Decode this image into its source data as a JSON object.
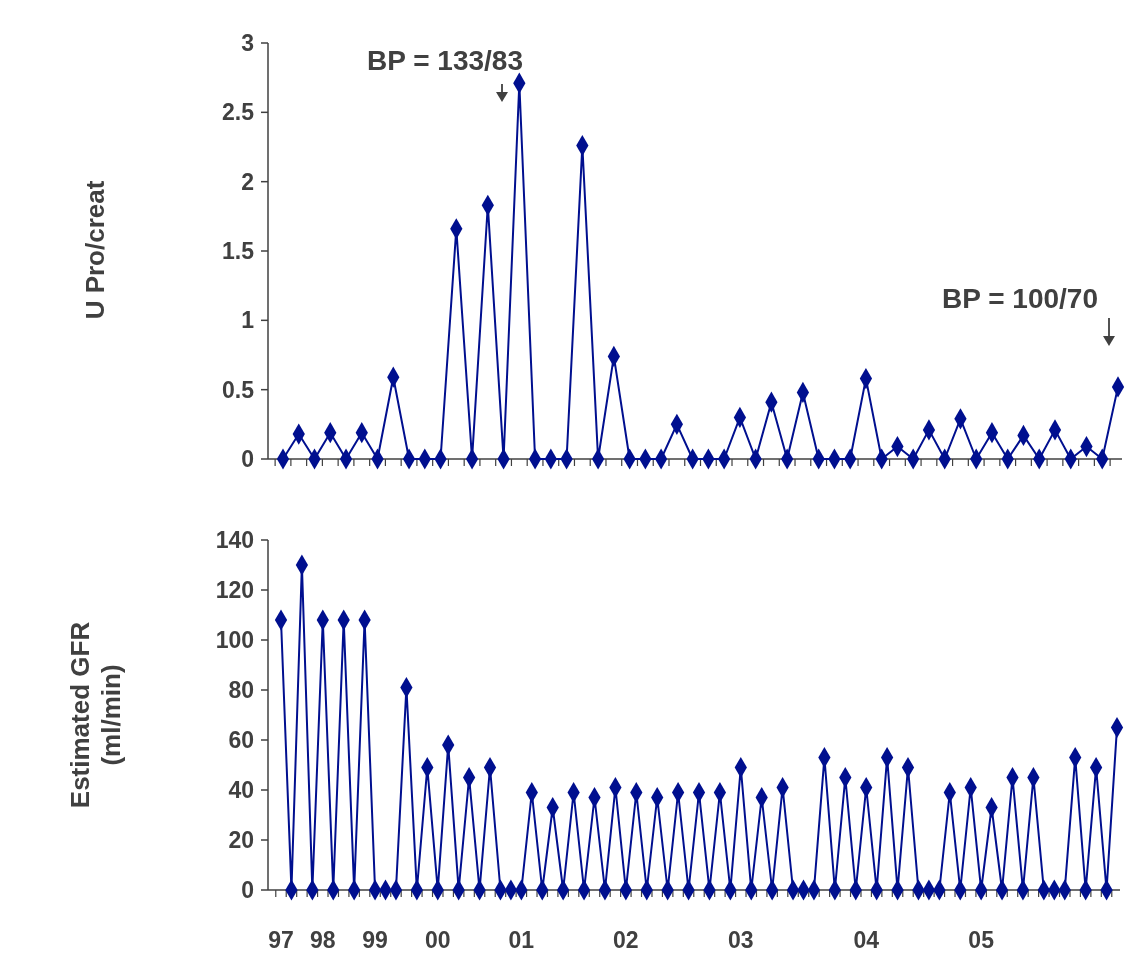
{
  "chart_data": [
    {
      "type": "line",
      "ylabel": "U Pro/creat",
      "marker": "diamond",
      "color": "#000f8f",
      "tick_labels": "y",
      "ylim": [
        0,
        3
      ],
      "yticks": [
        0,
        0.5,
        1,
        1.5,
        2,
        2.5,
        3
      ],
      "categories": [
        null,
        null,
        null,
        null,
        null,
        null,
        null,
        null,
        null,
        null,
        null,
        null,
        null,
        null,
        null,
        null,
        null,
        null,
        null,
        null,
        null,
        null,
        null,
        null,
        null,
        null,
        null,
        null,
        null,
        null,
        null,
        null,
        null,
        null,
        null,
        null,
        null,
        null,
        null,
        null,
        null,
        null,
        null,
        null,
        null,
        null,
        null,
        null,
        null,
        null,
        null,
        null,
        null,
        null
      ],
      "values": [
        0,
        0.18,
        0,
        0.19,
        0,
        0.19,
        0,
        0.59,
        0,
        0,
        0,
        1.66,
        0,
        1.83,
        0,
        2.71,
        0,
        0,
        0,
        2.26,
        0,
        0.74,
        0,
        0,
        0,
        0.25,
        0,
        0,
        0,
        0.3,
        0,
        0.41,
        0,
        0.48,
        0,
        0,
        0,
        0.58,
        0,
        0.09,
        0,
        0.21,
        0,
        0.29,
        0,
        0.19,
        0,
        0.17,
        0,
        0.21,
        0,
        0.09,
        0,
        0.52
      ],
      "annotations": [
        "BP = 133/83",
        "BP = 100/70"
      ]
    },
    {
      "type": "line",
      "ylabel": "Estimated GFR\n(ml/min)",
      "marker": "diamond",
      "color": "#000f8f",
      "ylim": [
        0,
        140
      ],
      "yticks": [
        0,
        20,
        40,
        60,
        80,
        100,
        120,
        140
      ],
      "categories": [
        "97",
        null,
        null,
        null,
        "98",
        null,
        null,
        null,
        null,
        "99",
        null,
        null,
        null,
        null,
        null,
        "00",
        null,
        null,
        null,
        null,
        null,
        null,
        null,
        "01",
        null,
        null,
        null,
        null,
        null,
        null,
        null,
        null,
        null,
        "02",
        null,
        null,
        null,
        null,
        null,
        null,
        null,
        null,
        null,
        null,
        "03",
        null,
        null,
        null,
        null,
        null,
        null,
        null,
        null,
        null,
        null,
        null,
        "04",
        null,
        null,
        null,
        null,
        null,
        null,
        null,
        null,
        null,
        null,
        "05",
        null,
        null,
        null,
        null,
        null,
        null,
        null,
        null,
        null,
        null,
        null,
        null,
        null
      ],
      "values": [
        108,
        0,
        130,
        0,
        108,
        0,
        108,
        0,
        108,
        0,
        0,
        0,
        81,
        0,
        49,
        0,
        58,
        0,
        45,
        0,
        49,
        0,
        0,
        0,
        39,
        0,
        33,
        0,
        39,
        0,
        37,
        0,
        41,
        0,
        39,
        0,
        37,
        0,
        39,
        0,
        39,
        0,
        39,
        0,
        49,
        0,
        37,
        0,
        41,
        0,
        0,
        0,
        53,
        0,
        45,
        0,
        41,
        0,
        53,
        0,
        49,
        0,
        0,
        0,
        39,
        0,
        41,
        0,
        33,
        0,
        45,
        0,
        45,
        0,
        0,
        0,
        53,
        0,
        49,
        0,
        65
      ]
    }
  ]
}
